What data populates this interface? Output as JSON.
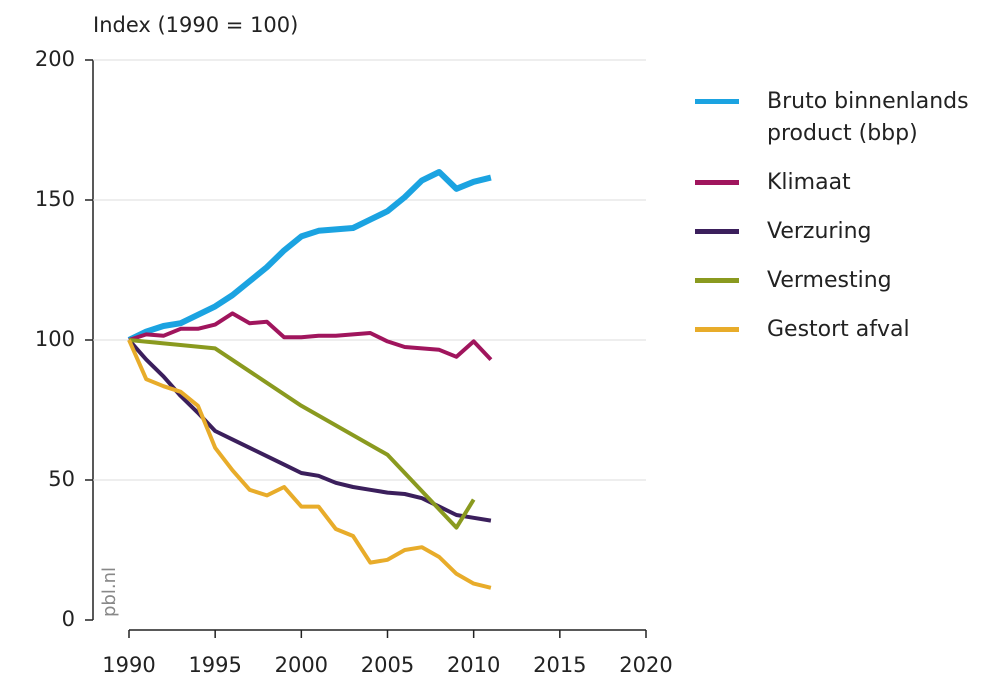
{
  "chart_data": {
    "type": "line",
    "ylabel": "Index (1990 = 100)",
    "watermark": "pbl.nl",
    "x": [
      1990,
      1991,
      1992,
      1993,
      1994,
      1995,
      1996,
      1997,
      1998,
      1999,
      2000,
      2001,
      2002,
      2003,
      2004,
      2005,
      2006,
      2007,
      2008,
      2009,
      2010,
      2011
    ],
    "series": [
      {
        "name": "Bruto binnenlands product (bbp)",
        "color": "#1ba3e1",
        "values": [
          100,
          103,
          105,
          106,
          109,
          112,
          116,
          121,
          126,
          132,
          137,
          139,
          139.5,
          140,
          143,
          146,
          151,
          157,
          160,
          154,
          156.5,
          158
        ]
      },
      {
        "name": "Klimaat",
        "color": "#a0155d",
        "values": [
          100,
          102,
          101.5,
          104,
          104,
          105.5,
          109.5,
          106,
          106.5,
          101,
          101,
          101.5,
          101.5,
          102,
          102.5,
          99.5,
          97.5,
          97,
          96.5,
          94,
          99.5,
          93
        ]
      },
      {
        "name": "Verzuring",
        "color": "#3b1f5c",
        "values": [
          100,
          93,
          87,
          80,
          74,
          67.5,
          64.5,
          61.5,
          58.5,
          55.5,
          52.5,
          51.5,
          49,
          47.5,
          46.5,
          45.5,
          45,
          43.5,
          40.5,
          37.5,
          36.5,
          35.5
        ]
      },
      {
        "name": "Vermesting",
        "color": "#8a9a1f",
        "x": [
          1990,
          1995,
          2000,
          2005,
          2009,
          2010
        ],
        "values": [
          100,
          97,
          76.5,
          59,
          33,
          43
        ]
      },
      {
        "name": "Gestort afval",
        "color": "#e8ac2a",
        "values": [
          100,
          86,
          83.5,
          81.5,
          76.5,
          61.5,
          53.5,
          46.5,
          44.5,
          47.5,
          40.5,
          40.5,
          32.5,
          30,
          20.5,
          21.5,
          25,
          26,
          22.5,
          16.5,
          13,
          11.5
        ]
      }
    ],
    "xlim": [
      1990,
      2020
    ],
    "xticks": [
      1990,
      1995,
      2000,
      2005,
      2010,
      2015,
      2020
    ],
    "ylim": [
      0,
      200
    ],
    "yticks": [
      0,
      50,
      100,
      150,
      200
    ],
    "grid": true
  }
}
